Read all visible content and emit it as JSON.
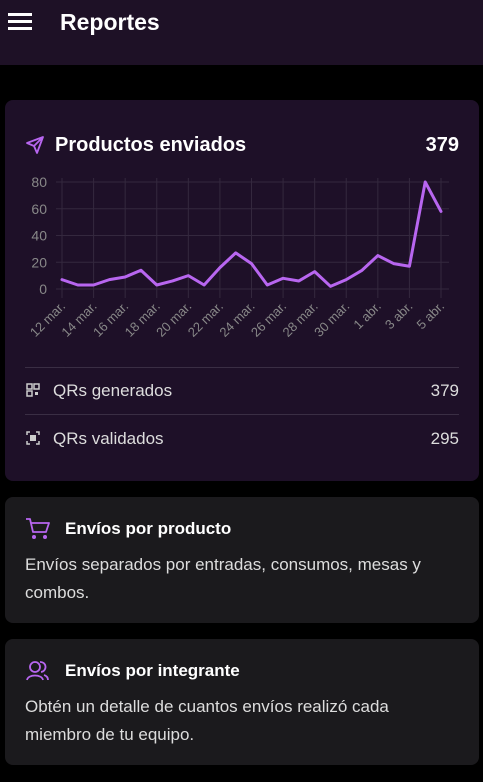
{
  "header": {
    "title": "Reportes"
  },
  "summary": {
    "title": "Productos enviados",
    "total": 379,
    "stats": [
      {
        "label": "QRs generados",
        "value": 379
      },
      {
        "label": "QRs validados",
        "value": 295
      }
    ]
  },
  "chart_data": {
    "type": "line",
    "categories": [
      "12 mar.",
      null,
      "14 mar.",
      null,
      "16 mar.",
      null,
      "18 mar.",
      null,
      "20 mar.",
      null,
      "22 mar.",
      null,
      "24 mar.",
      null,
      "26 mar.",
      null,
      "28 mar.",
      null,
      "30 mar.",
      null,
      "1 abr.",
      null,
      "3 abr.",
      null,
      "5 abr."
    ],
    "series": [
      {
        "color": "#b866f0",
        "values": [
          7,
          3,
          3,
          7,
          9,
          14,
          3,
          6,
          10,
          3,
          16,
          27,
          19,
          3,
          8,
          6,
          13,
          2,
          7,
          14,
          25,
          19,
          17,
          80,
          58
        ]
      }
    ],
    "ylim": [
      0,
      80
    ],
    "yticks": [
      0,
      20,
      40,
      60,
      80
    ],
    "grid": true
  },
  "cards": [
    {
      "title": "Envíos por producto",
      "text": "Envíos separados por entradas, consumos, mesas y combos."
    },
    {
      "title": "Envíos por integrante",
      "text": "Obtén un detalle de cuantos envíos realizó cada miembro de tu equipo."
    }
  ]
}
